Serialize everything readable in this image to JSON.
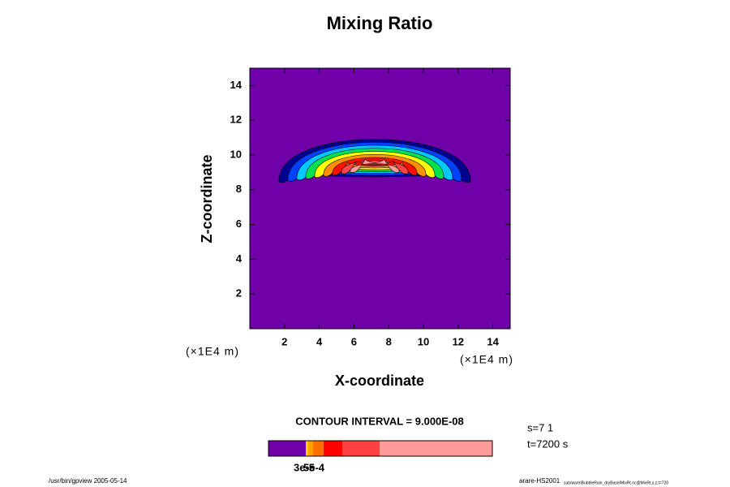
{
  "chart_data": {
    "type": "contour",
    "title": "Mixing Ratio",
    "x_label": "X-coordinate",
    "y_label": "Z-coordinate",
    "x_unit": "(×1E4 m)",
    "y_unit": "(×1E4 m)",
    "xlim": [
      0,
      15
    ],
    "ylim": [
      0,
      15
    ],
    "xticks": [
      2,
      4,
      6,
      8,
      10,
      12,
      14
    ],
    "yticks": [
      2,
      4,
      6,
      8,
      10,
      12,
      14
    ],
    "background_color": "#7000a8",
    "contour_interval": "CONTOUR INTERVAL = 9.000E-08",
    "colorbar_labels": [
      "3e-5",
      "5e-4"
    ],
    "annotations": [
      "s=7 1",
      "t=7200 s"
    ],
    "footer_left": "/usr/bin/gpview 2005-05-14",
    "footer_right": "arare-HS2001",
    "footer_right_small": "sub/warmBubbleRain_dryBase/MixRt.nc@MixRt,x,z,t=720"
  }
}
